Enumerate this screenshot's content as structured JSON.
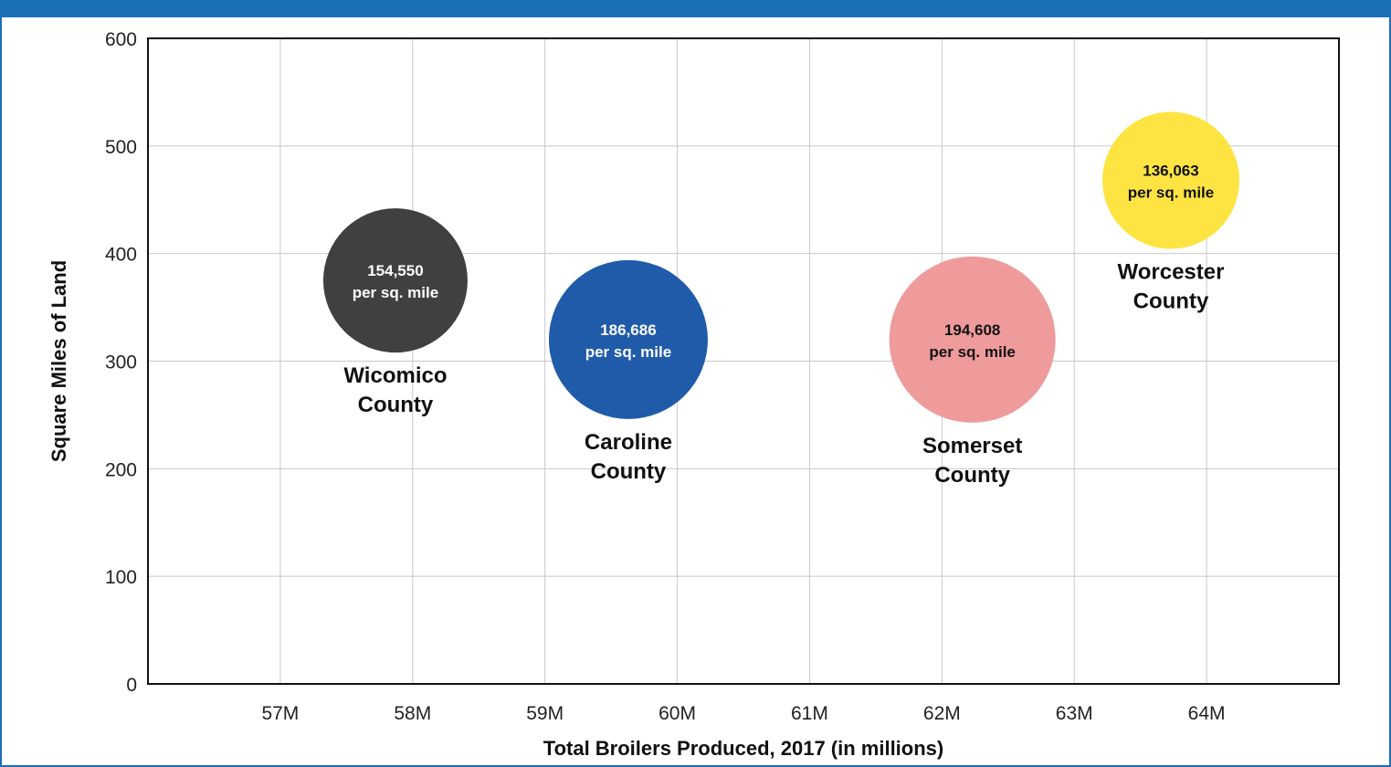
{
  "chart_data": {
    "type": "scatter",
    "title": "",
    "xlabel": "Total Broilers Produced, 2017 (in millions)",
    "ylabel": "Square Miles of Land",
    "xlim": [
      56,
      65
    ],
    "ylim": [
      0,
      600
    ],
    "x_ticks": [
      57,
      58,
      59,
      60,
      61,
      62,
      63,
      64
    ],
    "x_tick_labels": [
      "57M",
      "58M",
      "59M",
      "60M",
      "61M",
      "62M",
      "63M",
      "64M"
    ],
    "y_ticks": [
      0,
      100,
      200,
      300,
      400,
      500,
      600
    ],
    "y_tick_labels": [
      "0",
      "100",
      "200",
      "300",
      "400",
      "500",
      "600"
    ],
    "grid": true,
    "legend": "none",
    "points": [
      {
        "x": 57.87,
        "y": 375,
        "density": "154,550",
        "density_unit": "per sq. mile",
        "county_line1": "Wicomico",
        "county_line2": "County",
        "color": "#404040",
        "text_color": "#ffffff",
        "size_rank": 2
      },
      {
        "x": 59.63,
        "y": 320,
        "density": "186,686",
        "density_unit": "per sq. mile",
        "county_line1": "Caroline",
        "county_line2": "County",
        "color": "#1f5ba8",
        "text_color": "#ffffff",
        "size_rank": 3
      },
      {
        "x": 62.23,
        "y": 320,
        "density": "194,608",
        "density_unit": "per sq. mile",
        "county_line1": "Somerset",
        "county_line2": "County",
        "color": "#ef9b9b",
        "text_color": "#111111",
        "size_rank": 4
      },
      {
        "x": 63.73,
        "y": 468,
        "density": "136,063",
        "density_unit": "per sq. mile",
        "county_line1": "Worcester",
        "county_line2": "County",
        "color": "#fde443",
        "text_color": "#111111",
        "size_rank": 1
      }
    ]
  }
}
